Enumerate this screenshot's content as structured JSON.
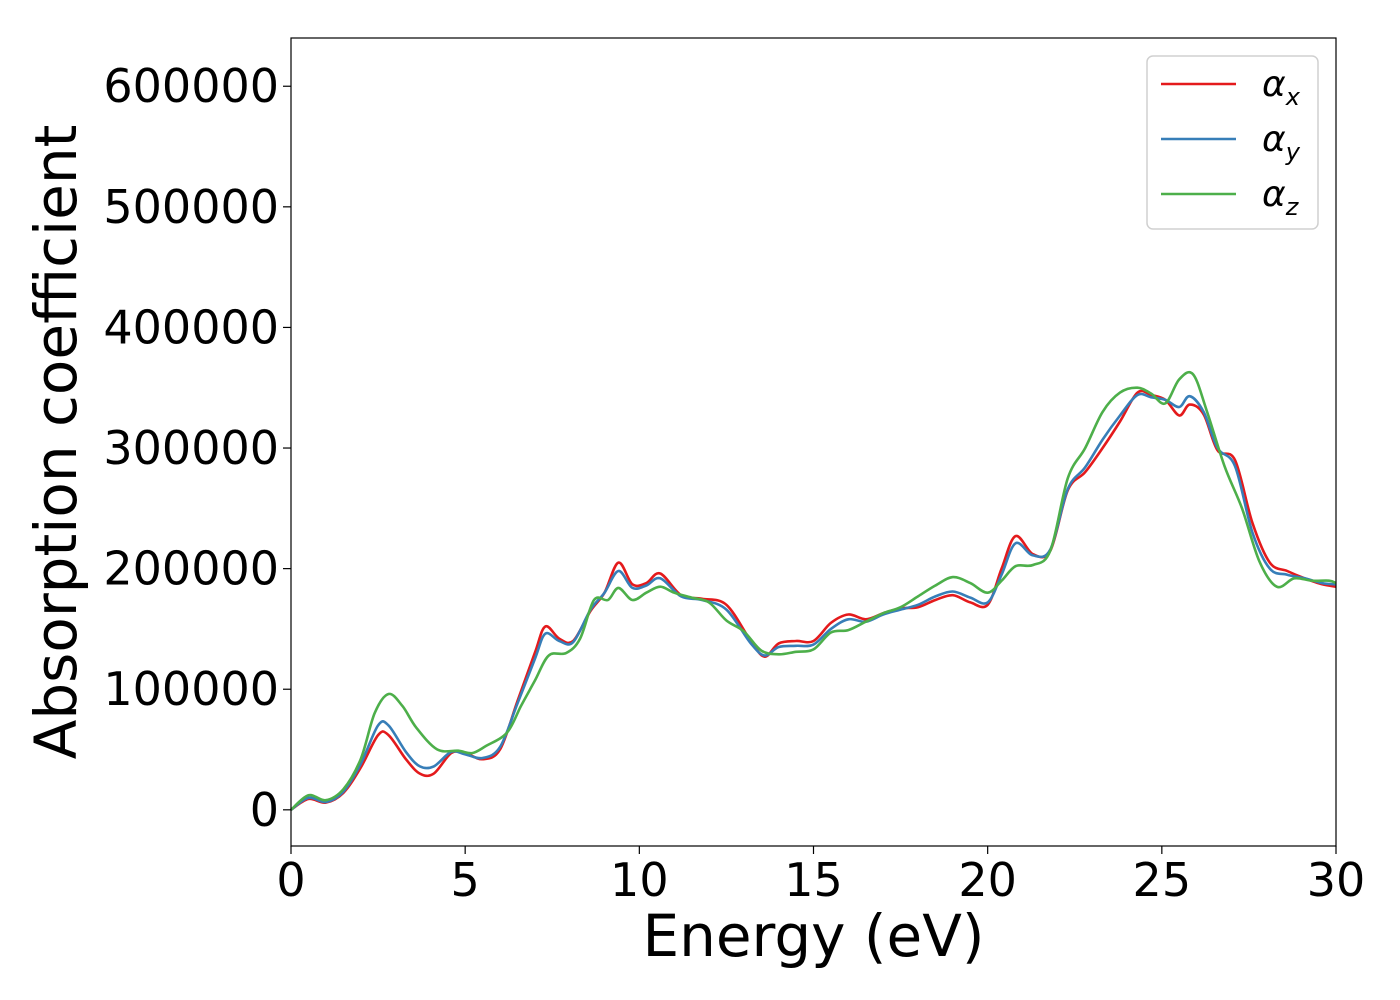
{
  "chart_data": {
    "type": "line",
    "title": "",
    "xlabel": "Energy (eV)",
    "ylabel": "Absorption coefficient",
    "xlim": [
      0,
      30
    ],
    "ylim": [
      -30000,
      640000
    ],
    "xticks": [
      0,
      5,
      10,
      15,
      20,
      25,
      30
    ],
    "xtick_labels": [
      "0",
      "5",
      "10",
      "15",
      "20",
      "25",
      "30"
    ],
    "yticks": [
      0,
      100000,
      200000,
      300000,
      400000,
      500000,
      600000
    ],
    "ytick_labels": [
      "0",
      "100000",
      "200000",
      "300000",
      "400000",
      "500000",
      "600000"
    ],
    "grid": false,
    "legend_position": "top-right",
    "series": [
      {
        "name": "α",
        "subscript": "x",
        "color": "#e41a1c",
        "points": [
          [
            0,
            0
          ],
          [
            0.5,
            9000
          ],
          [
            1,
            6000
          ],
          [
            1.5,
            14000
          ],
          [
            2,
            35000
          ],
          [
            2.5,
            62000
          ],
          [
            2.8,
            62000
          ],
          [
            3.3,
            42000
          ],
          [
            3.7,
            30000
          ],
          [
            4.1,
            30000
          ],
          [
            4.6,
            47000
          ],
          [
            5,
            47000
          ],
          [
            5.5,
            42000
          ],
          [
            6,
            50000
          ],
          [
            6.5,
            90000
          ],
          [
            7,
            130000
          ],
          [
            7.3,
            152000
          ],
          [
            7.7,
            142000
          ],
          [
            8.1,
            140000
          ],
          [
            8.6,
            165000
          ],
          [
            9,
            180000
          ],
          [
            9.4,
            205000
          ],
          [
            9.8,
            187000
          ],
          [
            10.2,
            188000
          ],
          [
            10.6,
            196000
          ],
          [
            11.2,
            178000
          ],
          [
            11.8,
            175000
          ],
          [
            12.5,
            170000
          ],
          [
            13.2,
            140000
          ],
          [
            13.6,
            127000
          ],
          [
            14,
            138000
          ],
          [
            14.5,
            140000
          ],
          [
            15,
            140000
          ],
          [
            15.5,
            155000
          ],
          [
            16,
            162000
          ],
          [
            16.5,
            158000
          ],
          [
            17,
            163000
          ],
          [
            17.5,
            167000
          ],
          [
            18,
            168000
          ],
          [
            18.5,
            174000
          ],
          [
            19,
            178000
          ],
          [
            19.5,
            172000
          ],
          [
            20,
            170000
          ],
          [
            20.4,
            200000
          ],
          [
            20.8,
            227000
          ],
          [
            21.3,
            212000
          ],
          [
            21.8,
            215000
          ],
          [
            22.3,
            265000
          ],
          [
            22.8,
            280000
          ],
          [
            23.3,
            300000
          ],
          [
            23.8,
            322000
          ],
          [
            24.3,
            346000
          ],
          [
            24.7,
            344000
          ],
          [
            25.1,
            340000
          ],
          [
            25.5,
            327000
          ],
          [
            25.8,
            336000
          ],
          [
            26.2,
            328000
          ],
          [
            26.6,
            298000
          ],
          [
            27.1,
            290000
          ],
          [
            27.6,
            238000
          ],
          [
            28.1,
            205000
          ],
          [
            28.6,
            198000
          ],
          [
            29.1,
            192000
          ],
          [
            29.6,
            187000
          ],
          [
            30,
            185000
          ]
        ]
      },
      {
        "name": "α",
        "subscript": "y",
        "color": "#377eb8",
        "points": [
          [
            0,
            0
          ],
          [
            0.5,
            10000
          ],
          [
            1,
            6500
          ],
          [
            1.5,
            15000
          ],
          [
            2,
            38000
          ],
          [
            2.5,
            70000
          ],
          [
            2.8,
            70000
          ],
          [
            3.3,
            48000
          ],
          [
            3.7,
            36000
          ],
          [
            4.1,
            36000
          ],
          [
            4.6,
            48000
          ],
          [
            5,
            46000
          ],
          [
            5.5,
            43000
          ],
          [
            6,
            52000
          ],
          [
            6.5,
            88000
          ],
          [
            7,
            125000
          ],
          [
            7.3,
            146000
          ],
          [
            7.7,
            140000
          ],
          [
            8.1,
            139000
          ],
          [
            8.6,
            166000
          ],
          [
            9,
            180000
          ],
          [
            9.4,
            198000
          ],
          [
            9.8,
            184000
          ],
          [
            10.2,
            186000
          ],
          [
            10.6,
            192000
          ],
          [
            11.2,
            177000
          ],
          [
            11.8,
            174000
          ],
          [
            12.5,
            166000
          ],
          [
            13.2,
            138000
          ],
          [
            13.6,
            128000
          ],
          [
            14,
            135000
          ],
          [
            14.5,
            136000
          ],
          [
            15,
            137000
          ],
          [
            15.5,
            150000
          ],
          [
            16,
            158000
          ],
          [
            16.5,
            156000
          ],
          [
            17,
            162000
          ],
          [
            17.5,
            166000
          ],
          [
            18,
            170000
          ],
          [
            18.5,
            177000
          ],
          [
            19,
            181000
          ],
          [
            19.5,
            176000
          ],
          [
            20,
            172000
          ],
          [
            20.4,
            195000
          ],
          [
            20.8,
            221000
          ],
          [
            21.3,
            211000
          ],
          [
            21.8,
            216000
          ],
          [
            22.3,
            266000
          ],
          [
            22.8,
            284000
          ],
          [
            23.3,
            307000
          ],
          [
            23.8,
            327000
          ],
          [
            24.3,
            344000
          ],
          [
            24.7,
            342000
          ],
          [
            25.1,
            340000
          ],
          [
            25.5,
            334000
          ],
          [
            25.8,
            343000
          ],
          [
            26.2,
            330000
          ],
          [
            26.6,
            300000
          ],
          [
            27.1,
            285000
          ],
          [
            27.6,
            230000
          ],
          [
            28.1,
            200000
          ],
          [
            28.6,
            195000
          ],
          [
            29.1,
            192000
          ],
          [
            29.6,
            188000
          ],
          [
            30,
            187000
          ]
        ]
      },
      {
        "name": "α",
        "subscript": "z",
        "color": "#4daf4a",
        "points": [
          [
            0,
            0
          ],
          [
            0.5,
            12000
          ],
          [
            1,
            8000
          ],
          [
            1.5,
            17000
          ],
          [
            2,
            42000
          ],
          [
            2.4,
            80000
          ],
          [
            2.8,
            96000
          ],
          [
            3.2,
            86000
          ],
          [
            3.6,
            68000
          ],
          [
            4.2,
            50000
          ],
          [
            4.8,
            49000
          ],
          [
            5.2,
            47000
          ],
          [
            5.6,
            53000
          ],
          [
            6.2,
            64000
          ],
          [
            6.6,
            86000
          ],
          [
            7,
            107000
          ],
          [
            7.4,
            128000
          ],
          [
            7.9,
            130000
          ],
          [
            8.3,
            142000
          ],
          [
            8.7,
            174000
          ],
          [
            9.1,
            174000
          ],
          [
            9.4,
            184000
          ],
          [
            9.8,
            174000
          ],
          [
            10.2,
            180000
          ],
          [
            10.6,
            185000
          ],
          [
            11,
            180000
          ],
          [
            11.5,
            176000
          ],
          [
            12,
            172000
          ],
          [
            12.5,
            157000
          ],
          [
            13,
            148000
          ],
          [
            13.5,
            132000
          ],
          [
            14,
            129000
          ],
          [
            14.5,
            131000
          ],
          [
            15,
            133000
          ],
          [
            15.5,
            147000
          ],
          [
            16,
            149000
          ],
          [
            16.5,
            156000
          ],
          [
            17,
            163000
          ],
          [
            17.5,
            168000
          ],
          [
            18,
            177000
          ],
          [
            18.5,
            186000
          ],
          [
            19,
            193000
          ],
          [
            19.5,
            188000
          ],
          [
            20,
            180000
          ],
          [
            20.4,
            190000
          ],
          [
            20.8,
            202000
          ],
          [
            21.3,
            203000
          ],
          [
            21.8,
            215000
          ],
          [
            22.3,
            275000
          ],
          [
            22.8,
            300000
          ],
          [
            23.3,
            330000
          ],
          [
            23.8,
            346000
          ],
          [
            24.3,
            350000
          ],
          [
            24.7,
            345000
          ],
          [
            25.1,
            337000
          ],
          [
            25.5,
            357000
          ],
          [
            25.9,
            361000
          ],
          [
            26.3,
            330000
          ],
          [
            26.8,
            285000
          ],
          [
            27.3,
            250000
          ],
          [
            27.8,
            206000
          ],
          [
            28.3,
            185000
          ],
          [
            28.8,
            192000
          ],
          [
            29.3,
            190000
          ],
          [
            29.8,
            190000
          ],
          [
            30,
            188000
          ]
        ]
      }
    ]
  }
}
